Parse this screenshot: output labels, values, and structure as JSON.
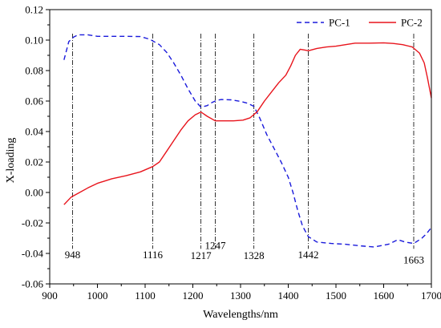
{
  "chart_data": {
    "type": "line",
    "title": "",
    "xlabel": "Wavelengths/nm",
    "ylabel": "X-loading",
    "xlim": [
      900,
      1700
    ],
    "ylim": [
      -0.06,
      0.12
    ],
    "x_ticks": [
      900,
      1000,
      1100,
      1200,
      1300,
      1400,
      1500,
      1600,
      1700
    ],
    "x_tick_labels": [
      "900",
      "1000",
      "1100",
      "1200",
      "1300",
      "1400",
      "1500",
      "1600",
      "1700"
    ],
    "y_ticks": [
      -0.06,
      -0.04,
      -0.02,
      0.0,
      0.02,
      0.04,
      0.06,
      0.08,
      0.1,
      0.12
    ],
    "y_tick_labels": [
      "-0.06",
      "-0.04",
      "-0.02",
      "0.00",
      "0.02",
      "0.04",
      "0.06",
      "0.08",
      "0.10",
      "0.12"
    ],
    "grid": false,
    "legend_position": "top-right",
    "series": [
      {
        "name": "PC-1",
        "color": "#1a1adb",
        "dash": "dashed",
        "points": [
          [
            930,
            0.087
          ],
          [
            940,
            0.099
          ],
          [
            950,
            0.102
          ],
          [
            960,
            0.1035
          ],
          [
            980,
            0.1035
          ],
          [
            1000,
            0.1025
          ],
          [
            1030,
            0.1025
          ],
          [
            1060,
            0.1025
          ],
          [
            1090,
            0.1023
          ],
          [
            1110,
            0.1005
          ],
          [
            1130,
            0.097
          ],
          [
            1145,
            0.092
          ],
          [
            1160,
            0.085
          ],
          [
            1175,
            0.077
          ],
          [
            1190,
            0.068
          ],
          [
            1205,
            0.06
          ],
          [
            1217,
            0.056
          ],
          [
            1230,
            0.057
          ],
          [
            1240,
            0.059
          ],
          [
            1250,
            0.0605
          ],
          [
            1260,
            0.061
          ],
          [
            1280,
            0.0608
          ],
          [
            1300,
            0.0598
          ],
          [
            1315,
            0.0585
          ],
          [
            1328,
            0.0565
          ],
          [
            1340,
            0.049
          ],
          [
            1355,
            0.038
          ],
          [
            1370,
            0.029
          ],
          [
            1385,
            0.02
          ],
          [
            1400,
            0.01
          ],
          [
            1410,
            0.0
          ],
          [
            1420,
            -0.012
          ],
          [
            1430,
            -0.022
          ],
          [
            1442,
            -0.029
          ],
          [
            1460,
            -0.0325
          ],
          [
            1490,
            -0.0335
          ],
          [
            1520,
            -0.034
          ],
          [
            1550,
            -0.035
          ],
          [
            1580,
            -0.0358
          ],
          [
            1610,
            -0.034
          ],
          [
            1630,
            -0.031
          ],
          [
            1645,
            -0.0325
          ],
          [
            1663,
            -0.0335
          ],
          [
            1680,
            -0.03
          ],
          [
            1690,
            -0.027
          ],
          [
            1700,
            -0.023
          ]
        ]
      },
      {
        "name": "PC-2",
        "color": "#e8141c",
        "dash": "solid",
        "points": [
          [
            930,
            -0.008
          ],
          [
            945,
            -0.003
          ],
          [
            960,
            -0.0005
          ],
          [
            980,
            0.003
          ],
          [
            1000,
            0.006
          ],
          [
            1030,
            0.009
          ],
          [
            1060,
            0.011
          ],
          [
            1090,
            0.0135
          ],
          [
            1116,
            0.017
          ],
          [
            1130,
            0.02
          ],
          [
            1145,
            0.027
          ],
          [
            1160,
            0.034
          ],
          [
            1175,
            0.041
          ],
          [
            1190,
            0.047
          ],
          [
            1205,
            0.051
          ],
          [
            1217,
            0.0528
          ],
          [
            1230,
            0.05
          ],
          [
            1247,
            0.047
          ],
          [
            1265,
            0.047
          ],
          [
            1285,
            0.047
          ],
          [
            1305,
            0.0475
          ],
          [
            1320,
            0.049
          ],
          [
            1335,
            0.053
          ],
          [
            1350,
            0.06
          ],
          [
            1365,
            0.066
          ],
          [
            1380,
            0.072
          ],
          [
            1395,
            0.077
          ],
          [
            1405,
            0.083
          ],
          [
            1415,
            0.09
          ],
          [
            1425,
            0.094
          ],
          [
            1435,
            0.0935
          ],
          [
            1442,
            0.093
          ],
          [
            1460,
            0.0945
          ],
          [
            1480,
            0.0955
          ],
          [
            1500,
            0.096
          ],
          [
            1520,
            0.097
          ],
          [
            1540,
            0.098
          ],
          [
            1570,
            0.098
          ],
          [
            1600,
            0.0982
          ],
          [
            1620,
            0.0978
          ],
          [
            1640,
            0.097
          ],
          [
            1660,
            0.0955
          ],
          [
            1675,
            0.0915
          ],
          [
            1685,
            0.085
          ],
          [
            1692,
            0.075
          ],
          [
            1700,
            0.062
          ]
        ]
      }
    ],
    "vertical_markers": [
      {
        "x": 948,
        "label": "948",
        "label_y": -0.041
      },
      {
        "x": 1116,
        "label": "1116",
        "label_y": -0.041
      },
      {
        "x": 1217,
        "label": "1217",
        "label_y": -0.0415
      },
      {
        "x": 1247,
        "label": "1247",
        "label_y": -0.035
      },
      {
        "x": 1328,
        "label": "1328",
        "label_y": -0.0415
      },
      {
        "x": 1442,
        "label": "1442",
        "label_y": -0.041
      },
      {
        "x": 1663,
        "label": "1663",
        "label_y": -0.0445
      }
    ]
  }
}
